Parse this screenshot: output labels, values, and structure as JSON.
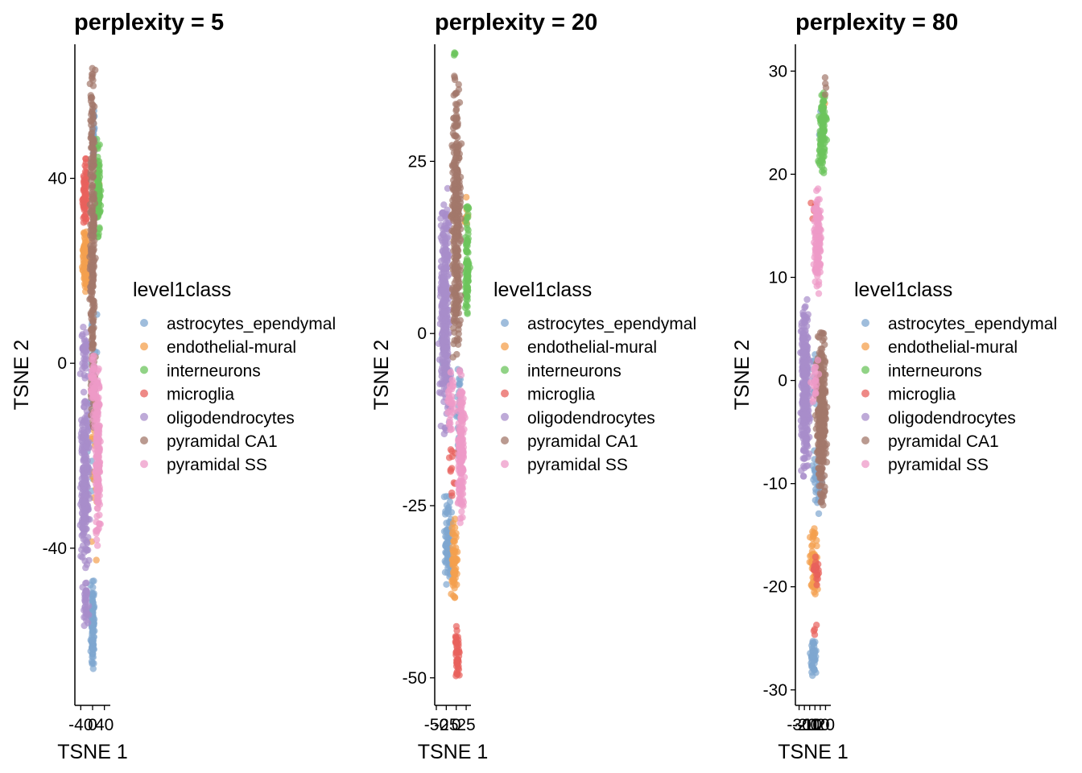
{
  "chart_data": [
    {
      "type": "scatter",
      "title": "perplexity = 5",
      "xlabel": "TSNE 1",
      "ylabel": "TSNE 2",
      "xlim": [
        -60,
        60
      ],
      "ylim": [
        -74,
        69
      ],
      "x_ticks": [
        -40,
        0,
        40
      ],
      "x_tick_labels": [
        "-40",
        "0",
        "40"
      ],
      "y_ticks": [
        -40,
        0,
        40
      ],
      "y_tick_labels": [
        "-40",
        "0",
        "40"
      ],
      "legend_title": "level1class",
      "legend_position": "right",
      "grid": false,
      "series": [
        {
          "name": "astrocytes_ependymal",
          "color": "#7FA7D0",
          "clusters": [
            {
              "x": [
                -8,
                8
              ],
              "y": [
                -67,
                -45
              ],
              "n": 110
            },
            {
              "x": [
                -2,
                8
              ],
              "y": [
                40,
                57
              ],
              "n": 30
            },
            {
              "x": [
                -20,
                20
              ],
              "y": [
                -35,
                25
              ],
              "n": 35
            }
          ]
        },
        {
          "name": "endothelial-mural",
          "color": "#F4A04E",
          "clusters": [
            {
              "x": [
                -38,
                -10
              ],
              "y": [
                15,
                30
              ],
              "n": 90
            },
            {
              "x": [
                10,
                25
              ],
              "y": [
                32,
                42
              ],
              "n": 20
            },
            {
              "x": [
                -15,
                25
              ],
              "y": [
                -50,
                10
              ],
              "n": 15
            }
          ]
        },
        {
          "name": "interneurons",
          "color": "#6CC45D",
          "clusters": [
            {
              "x": [
                8,
                30
              ],
              "y": [
                25,
                50
              ],
              "n": 95
            }
          ]
        },
        {
          "name": "microglia",
          "color": "#E8615D",
          "clusters": [
            {
              "x": [
                -38,
                -12
              ],
              "y": [
                28,
                45
              ],
              "n": 70
            }
          ]
        },
        {
          "name": "oligodendrocytes",
          "color": "#A88DCB",
          "clusters": [
            {
              "x": [
                -45,
                -5
              ],
              "y": [
                -45,
                -5
              ],
              "n": 230
            },
            {
              "x": [
                -35,
                -10
              ],
              "y": [
                -58,
                -45
              ],
              "n": 35
            },
            {
              "x": [
                -45,
                -10
              ],
              "y": [
                -5,
                10
              ],
              "n": 40
            }
          ]
        },
        {
          "name": "pyramidal CA1",
          "color": "#A3786B",
          "clusters": [
            {
              "x": [
                -12,
                12
              ],
              "y": [
                -20,
                67
              ],
              "n": 260
            }
          ]
        },
        {
          "name": "pyramidal SS",
          "color": "#EE9AC8",
          "clusters": [
            {
              "x": [
                5,
                30
              ],
              "y": [
                -40,
                0
              ],
              "n": 170
            },
            {
              "x": [
                -10,
                15
              ],
              "y": [
                -15,
                5
              ],
              "n": 40
            }
          ]
        }
      ]
    },
    {
      "type": "scatter",
      "title": "perplexity = 20",
      "xlabel": "TSNE 1",
      "ylabel": "TSNE 2",
      "xlim": [
        -54,
        37
      ],
      "ylim": [
        -54,
        42
      ],
      "x_ticks": [
        -50,
        -25,
        0,
        25
      ],
      "x_tick_labels": [
        "-50",
        "-25",
        "0",
        "25"
      ],
      "y_ticks": [
        -50,
        -25,
        0,
        25
      ],
      "y_tick_labels": [
        "-50",
        "-25",
        "0",
        "25"
      ],
      "legend_title": "level1class",
      "legend_position": "right",
      "grid": false,
      "series": [
        {
          "name": "astrocytes_ependymal",
          "color": "#7FA7D0",
          "clusters": [
            {
              "x": [
                -35,
                -5
              ],
              "y": [
                -38,
                -22
              ],
              "n": 80
            },
            {
              "x": [
                0,
                15
              ],
              "y": [
                -20,
                -3
              ],
              "n": 30
            },
            {
              "x": [
                -40,
                -25
              ],
              "y": [
                -10,
                5
              ],
              "n": 15
            }
          ]
        },
        {
          "name": "endothelial-mural",
          "color": "#F4A04E",
          "clusters": [
            {
              "x": [
                -15,
                5
              ],
              "y": [
                -40,
                -26
              ],
              "n": 60
            },
            {
              "x": [
                18,
                32
              ],
              "y": [
                15,
                20
              ],
              "n": 8
            }
          ]
        },
        {
          "name": "interneurons",
          "color": "#6CC45D",
          "clusters": [
            {
              "x": [
                20,
                35
              ],
              "y": [
                0,
                20
              ],
              "n": 95
            },
            {
              "x": [
                -10,
                0
              ],
              "y": [
                40,
                42
              ],
              "n": 4
            }
          ]
        },
        {
          "name": "microglia",
          "color": "#E8615D",
          "clusters": [
            {
              "x": [
                -5,
                10
              ],
              "y": [
                -50,
                -42
              ],
              "n": 45
            },
            {
              "x": [
                -30,
                5
              ],
              "y": [
                -25,
                -13
              ],
              "n": 12
            }
          ]
        },
        {
          "name": "oligodendrocytes",
          "color": "#A88DCB",
          "clusters": [
            {
              "x": [
                -45,
                -12
              ],
              "y": [
                -15,
                22
              ],
              "n": 320
            }
          ]
        },
        {
          "name": "pyramidal CA1",
          "color": "#A3786B",
          "clusters": [
            {
              "x": [
                -15,
                15
              ],
              "y": [
                -5,
                40
              ],
              "n": 330
            }
          ]
        },
        {
          "name": "pyramidal SS",
          "color": "#EE9AC8",
          "clusters": [
            {
              "x": [
                0,
                25
              ],
              "y": [
                -30,
                -5
              ],
              "n": 170
            },
            {
              "x": [
                -25,
                0
              ],
              "y": [
                -15,
                -5
              ],
              "n": 30
            }
          ]
        }
      ]
    },
    {
      "type": "scatter",
      "title": "perplexity = 80",
      "xlabel": "TSNE 1",
      "ylabel": "TSNE 2",
      "xlim": [
        -37,
        30
      ],
      "ylim": [
        -31.5,
        32.6
      ],
      "x_ticks": [
        -30,
        -20,
        -10,
        0,
        10,
        20
      ],
      "x_tick_labels": [
        "-30",
        "-20",
        "-10",
        "0",
        "10",
        "20"
      ],
      "y_ticks": [
        -30,
        -20,
        -10,
        0,
        10,
        20,
        30
      ],
      "y_tick_labels": [
        "-30",
        "-20",
        "-10",
        "0",
        "10",
        "20",
        "30"
      ],
      "legend_title": "level1class",
      "legend_position": "right",
      "grid": false,
      "series": [
        {
          "name": "astrocytes_ependymal",
          "color": "#7FA7D0",
          "clusters": [
            {
              "x": [
                -10,
                5
              ],
              "y": [
                -29,
                -25
              ],
              "n": 45
            },
            {
              "x": [
                -10,
                20
              ],
              "y": [
                -13,
                -5
              ],
              "n": 40
            },
            {
              "x": [
                -10,
                10
              ],
              "y": [
                -3,
                3
              ],
              "n": 15
            },
            {
              "x": [
                5,
                20
              ],
              "y": [
                20,
                28
              ],
              "n": 10
            }
          ]
        },
        {
          "name": "endothelial-mural",
          "color": "#F4A04E",
          "clusters": [
            {
              "x": [
                -12,
                8
              ],
              "y": [
                -21,
                -14
              ],
              "n": 70
            },
            {
              "x": [
                10,
                20
              ],
              "y": [
                26,
                28
              ],
              "n": 4
            }
          ]
        },
        {
          "name": "interneurons",
          "color": "#6CC45D",
          "clusters": [
            {
              "x": [
                5,
                25
              ],
              "y": [
                19,
                29
              ],
              "n": 95
            }
          ]
        },
        {
          "name": "microglia",
          "color": "#E8615D",
          "clusters": [
            {
              "x": [
                -5,
                10
              ],
              "y": [
                -20,
                -17
              ],
              "n": 20
            },
            {
              "x": [
                -5,
                5
              ],
              "y": [
                -25,
                -23
              ],
              "n": 4
            },
            {
              "x": [
                -10,
                5
              ],
              "y": [
                14,
                20
              ],
              "n": 5
            }
          ]
        },
        {
          "name": "oligodendrocytes",
          "color": "#A88DCB",
          "clusters": [
            {
              "x": [
                -30,
                -8
              ],
              "y": [
                -10,
                8
              ],
              "n": 300
            }
          ]
        },
        {
          "name": "pyramidal CA1",
          "color": "#A3786B",
          "clusters": [
            {
              "x": [
                0,
                25
              ],
              "y": [
                -13,
                6
              ],
              "n": 300
            },
            {
              "x": [
                15,
                25
              ],
              "y": [
                27,
                30
              ],
              "n": 4
            }
          ]
        },
        {
          "name": "pyramidal SS",
          "color": "#EE9AC8",
          "clusters": [
            {
              "x": [
                -5,
                15
              ],
              "y": [
                8,
                20
              ],
              "n": 120
            },
            {
              "x": [
                -10,
                10
              ],
              "y": [
                -3,
                3
              ],
              "n": 20
            }
          ]
        }
      ]
    }
  ]
}
